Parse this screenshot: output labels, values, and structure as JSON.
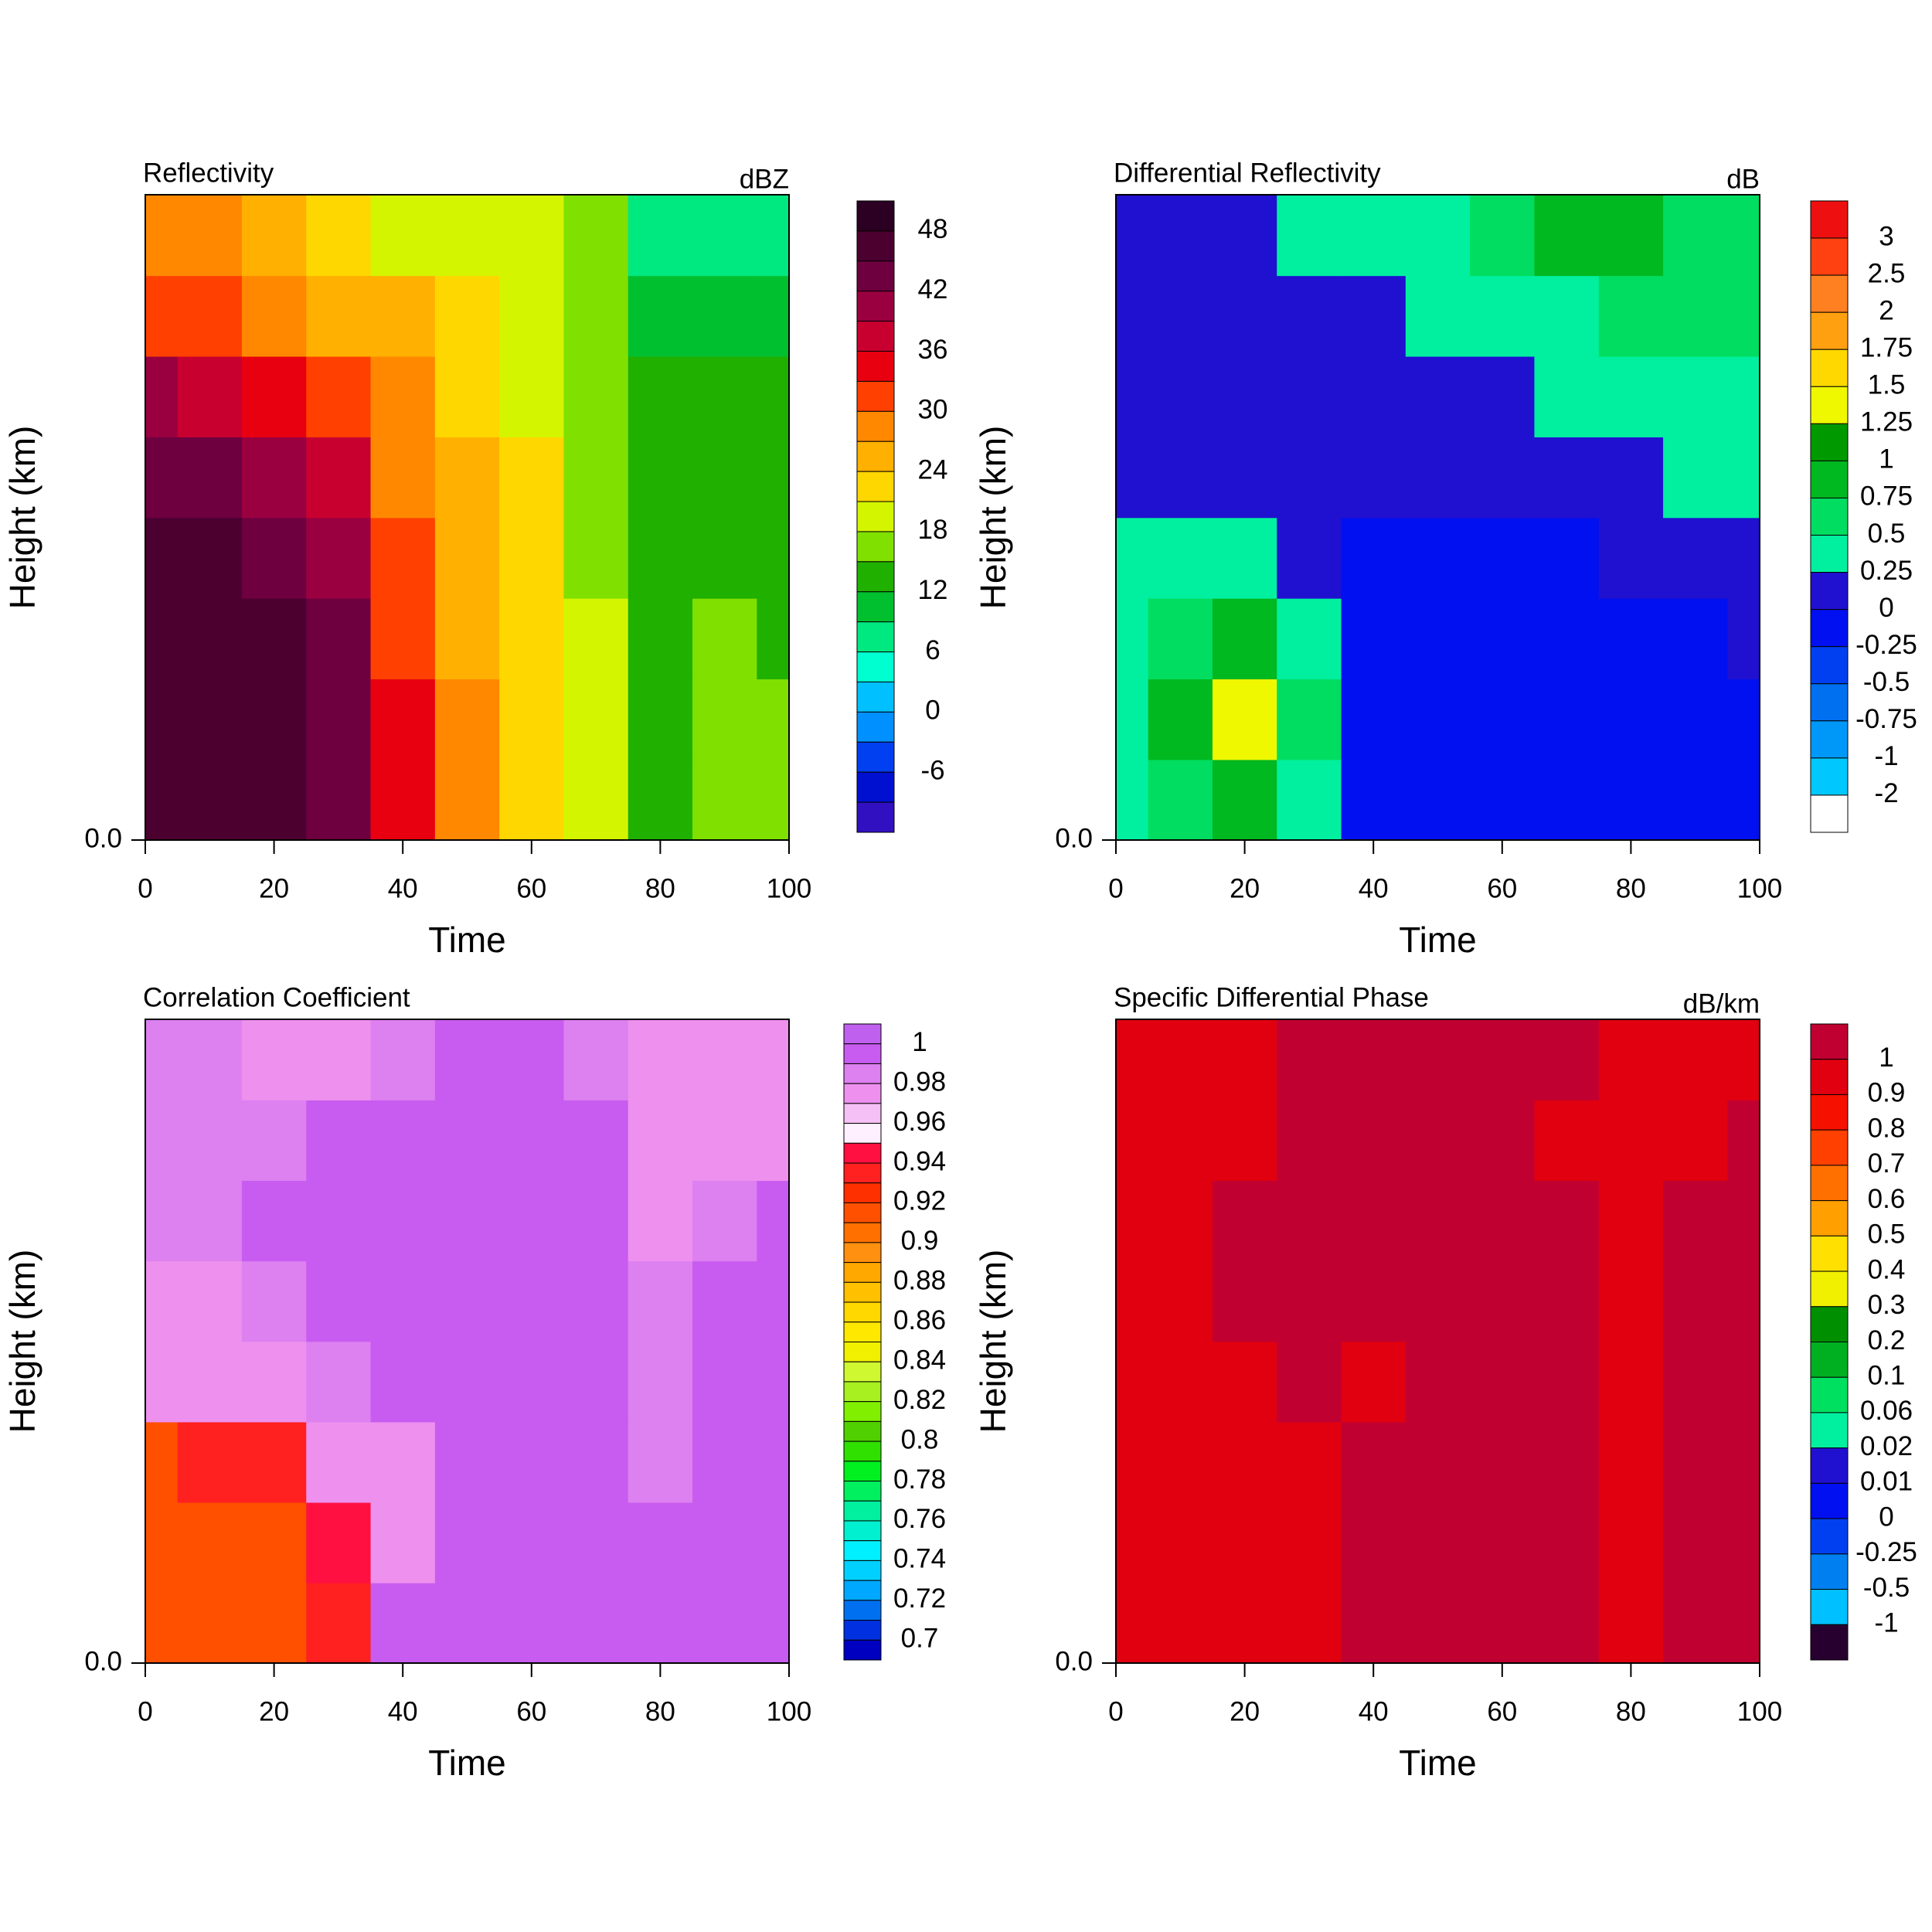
{
  "chart_data": [
    {
      "type": "contour",
      "title": "Reflectivity",
      "units": "dBZ",
      "x_label": "Time",
      "y_label": "Height (km)",
      "xlim": [
        0,
        100
      ],
      "xticks": [
        0,
        20,
        40,
        60,
        80,
        100
      ],
      "yticks": [
        {
          "value": 0,
          "label": "0.0"
        }
      ],
      "x": [
        0,
        10,
        20,
        30,
        40,
        50,
        60,
        70,
        80,
        90,
        100
      ],
      "z": [
        [
          46,
          46,
          46,
          44,
          34,
          28,
          23,
          19,
          13,
          17,
          17
        ],
        [
          46,
          46,
          46,
          44,
          34,
          28,
          23,
          19,
          13,
          17,
          17
        ],
        [
          46,
          46,
          46,
          43,
          33,
          27,
          22,
          19,
          13,
          17,
          15
        ],
        [
          46,
          46,
          45,
          40,
          31,
          26,
          22,
          18,
          13,
          14,
          14
        ],
        [
          44,
          44,
          41,
          37,
          30,
          25,
          22,
          17,
          13,
          13,
          13
        ],
        [
          40,
          39,
          36,
          32,
          28,
          24,
          21,
          18,
          13,
          13,
          13
        ],
        [
          31,
          31,
          30,
          27,
          25,
          23,
          21,
          18,
          12,
          12,
          10
        ],
        [
          30,
          28,
          26,
          23,
          21,
          20,
          19,
          16,
          9,
          8,
          7
        ]
      ],
      "colorbar_labels": [
        48,
        42,
        36,
        30,
        24,
        18,
        12,
        6,
        0,
        -6
      ],
      "colors": [
        "#2c0022",
        "#4b0030",
        "#6e0040",
        "#9a0040",
        "#c80030",
        "#e80010",
        "#ff4000",
        "#ff8800",
        "#ffb000",
        "#ffd700",
        "#d4f500",
        "#80e000",
        "#20b000",
        "#00c030",
        "#00e880",
        "#00ffd0",
        "#00c0ff",
        "#0090ff",
        "#0040f0",
        "#0010d0",
        "#3010c0"
      ]
    },
    {
      "type": "contour",
      "title": "Differential Reflectivity",
      "units": "dB",
      "x_label": "Time",
      "y_label": "Height (km)",
      "xlim": [
        0,
        100
      ],
      "xticks": [
        0,
        20,
        40,
        60,
        80,
        100
      ],
      "yticks": [
        {
          "value": 0,
          "label": "0.0"
        }
      ],
      "x": [
        0,
        10,
        20,
        30,
        40,
        50,
        60,
        70,
        80,
        90,
        100
      ],
      "z": [
        [
          0.4,
          0.6,
          0.9,
          0.5,
          -0.1,
          -0.1,
          -0.1,
          -0.1,
          -0.1,
          -0.1,
          -0.1
        ],
        [
          0.5,
          0.9,
          1.3,
          0.6,
          -0.1,
          -0.1,
          -0.1,
          -0.1,
          -0.1,
          -0.1,
          -0.1
        ],
        [
          0.4,
          0.7,
          0.8,
          0.4,
          -0.1,
          -0.1,
          -0.1,
          -0.1,
          -0.1,
          -0.1,
          0.1
        ],
        [
          0.3,
          0.4,
          0.3,
          0.1,
          -0.1,
          -0.1,
          -0.1,
          -0.1,
          0.1,
          0.1,
          0.1
        ],
        [
          0.1,
          0.1,
          0.1,
          0.1,
          0.1,
          0.1,
          0.1,
          0.1,
          0.1,
          0.3,
          0.3
        ],
        [
          0.1,
          0.1,
          0.1,
          0.1,
          0.1,
          0.1,
          0.1,
          0.3,
          0.4,
          0.4,
          0.4
        ],
        [
          0.1,
          0.1,
          0.1,
          0.1,
          0.1,
          0.3,
          0.4,
          0.4,
          0.6,
          0.6,
          0.6
        ],
        [
          0.1,
          0.1,
          0.1,
          0.3,
          0.4,
          0.4,
          0.6,
          0.8,
          0.8,
          0.7,
          0.6
        ]
      ],
      "colorbar_labels": [
        3,
        2.5,
        2,
        1.75,
        1.5,
        1.25,
        1,
        0.75,
        0.5,
        0.25,
        0,
        -0.25,
        -0.5,
        -0.75,
        -1,
        -2
      ],
      "colors": [
        "#ee1010",
        "#ff4010",
        "#ff8020",
        "#ffa010",
        "#ffd800",
        "#f0f800",
        "#009a00",
        "#00b820",
        "#00dd60",
        "#00f0a0",
        "#2010d0",
        "#0010f0",
        "#0040f0",
        "#0070f0",
        "#0098f8",
        "#00c8ff",
        "#ffffff"
      ]
    },
    {
      "type": "contour",
      "title": "Correlation Coefficient",
      "x_label": "Time",
      "y_label": "Height (km)",
      "xlim": [
        0,
        100
      ],
      "xticks": [
        0,
        20,
        40,
        60,
        80,
        100
      ],
      "yticks": [
        {
          "value": 0,
          "label": "0.0"
        }
      ],
      "x": [
        0,
        10,
        20,
        30,
        40,
        50,
        60,
        70,
        80,
        90,
        100
      ],
      "z": [
        [
          0.92,
          0.92,
          0.92,
          0.93,
          0.995,
          0.995,
          0.995,
          0.995,
          0.995,
          0.995,
          0.995
        ],
        [
          0.92,
          0.92,
          0.92,
          0.95,
          0.975,
          0.995,
          0.995,
          0.995,
          0.995,
          0.995,
          0.995
        ],
        [
          0.92,
          0.93,
          0.93,
          0.975,
          0.975,
          0.995,
          0.995,
          0.995,
          0.985,
          0.995,
          0.995
        ],
        [
          0.975,
          0.975,
          0.975,
          0.985,
          0.995,
          0.995,
          0.995,
          0.995,
          0.985,
          0.995,
          0.995
        ],
        [
          0.975,
          0.975,
          0.985,
          0.995,
          0.995,
          0.995,
          0.995,
          0.995,
          0.985,
          0.995,
          0.995
        ],
        [
          0.985,
          0.985,
          0.995,
          0.995,
          0.995,
          0.995,
          0.995,
          0.995,
          0.975,
          0.985,
          0.995
        ],
        [
          0.985,
          0.985,
          0.985,
          0.995,
          0.995,
          0.995,
          0.995,
          0.995,
          0.975,
          0.975,
          0.975
        ],
        [
          0.985,
          0.985,
          0.975,
          0.975,
          0.985,
          0.995,
          0.995,
          0.985,
          0.975,
          0.975,
          0.975
        ]
      ],
      "colorbar_labels": [
        1,
        0.98,
        0.96,
        0.94,
        0.92,
        0.9,
        0.88,
        0.86,
        0.84,
        0.82,
        0.8,
        0.78,
        0.76,
        0.74,
        0.72,
        0.7
      ],
      "colors": [
        "#c060ee",
        "#c85cf0",
        "#dd80f0",
        "#ee90ee",
        "#f5c0f5",
        "#fff0ff",
        "#ff1040",
        "#ff2020",
        "#ff3000",
        "#ff5000",
        "#ff7000",
        "#ff9010",
        "#ffa800",
        "#ffc000",
        "#ffd800",
        "#ffe800",
        "#f0f000",
        "#d0f830",
        "#a8f020",
        "#80f000",
        "#50d000",
        "#30e000",
        "#00f020",
        "#00f060",
        "#00f0a0",
        "#00f0d0",
        "#00f0ff",
        "#00d0ff",
        "#00a8ff",
        "#0070f0",
        "#0030e0",
        "#0000c0"
      ]
    },
    {
      "type": "contour",
      "title": "Specific Differential Phase",
      "units": "dB/km",
      "x_label": "Time",
      "y_label": "Height (km)",
      "xlim": [
        0,
        100
      ],
      "xticks": [
        0,
        20,
        40,
        60,
        80,
        100
      ],
      "yticks": [
        {
          "value": 0,
          "label": "0.0"
        }
      ],
      "x": [
        0,
        10,
        20,
        30,
        40,
        50,
        60,
        70,
        80,
        90,
        100
      ],
      "z": [
        [
          0.95,
          0.95,
          0.95,
          0.95,
          1.05,
          1.05,
          1.05,
          1.05,
          0.95,
          1.05,
          1.05
        ],
        [
          0.95,
          0.95,
          0.95,
          0.95,
          1.05,
          1.05,
          1.05,
          1.05,
          0.95,
          1.05,
          1.05
        ],
        [
          0.95,
          0.95,
          0.95,
          0.95,
          1.05,
          1.05,
          1.05,
          1.05,
          0.95,
          1.05,
          1.05
        ],
        [
          0.95,
          0.95,
          0.95,
          1.05,
          0.95,
          1.05,
          1.05,
          1.05,
          0.95,
          1.05,
          1.05
        ],
        [
          0.95,
          0.95,
          1.05,
          1.05,
          1.05,
          1.05,
          1.05,
          1.05,
          0.95,
          1.05,
          1.05
        ],
        [
          0.95,
          0.95,
          1.05,
          1.05,
          1.05,
          1.05,
          1.05,
          1.05,
          0.95,
          1.05,
          1.05
        ],
        [
          0.95,
          0.95,
          0.95,
          1.05,
          1.05,
          1.05,
          1.05,
          0.95,
          0.95,
          0.95,
          1.05
        ],
        [
          0.95,
          0.95,
          0.95,
          1.05,
          1.05,
          1.05,
          1.05,
          1.05,
          0.95,
          0.95,
          0.95
        ]
      ],
      "colorbar_labels": [
        1,
        0.9,
        0.8,
        0.7,
        0.6,
        0.5,
        0.4,
        0.3,
        0.2,
        0.1,
        0.06,
        0.02,
        0.01,
        0,
        -0.25,
        -0.5,
        -1
      ],
      "colors": [
        "#c00030",
        "#e00010",
        "#f51000",
        "#ff4000",
        "#ff7000",
        "#ffa000",
        "#ffe000",
        "#f0f000",
        "#008f00",
        "#00b020",
        "#00e060",
        "#00f0a0",
        "#2010d0",
        "#0010f0",
        "#0040f0",
        "#0080f0",
        "#00c0ff",
        "#280030"
      ]
    }
  ]
}
